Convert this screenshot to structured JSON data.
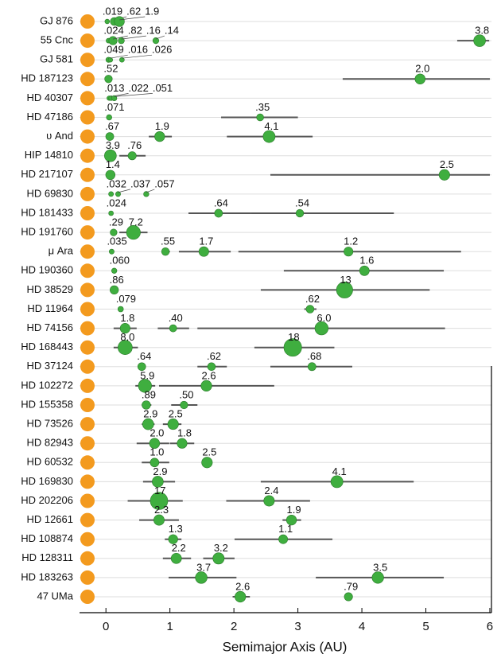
{
  "chart_data": {
    "type": "exoplanet-systems",
    "x_label": "Semimajor Axis (AU)",
    "xlim": [
      -0.45,
      6.05
    ],
    "xticks": [
      0,
      1,
      2,
      3,
      4,
      5,
      6
    ],
    "star_color": "#f39a1e",
    "planet_color": "#3fae3f",
    "range_color": "#555555",
    "systems": [
      {
        "name": "GJ 876",
        "a": [
          0.02,
          0.13,
          0.21
        ],
        "mass": [
          0.019,
          0.62,
          1.9
        ],
        "mass_labels": [
          ".019",
          ".62",
          "1.9"
        ],
        "ranges": [
          null,
          null,
          null
        ]
      },
      {
        "name": "55 Cnc",
        "a": [
          0.04,
          0.11,
          0.24,
          0.78,
          5.84
        ],
        "mass": [
          0.024,
          0.82,
          0.16,
          0.14,
          3.8
        ],
        "mass_labels": [
          ".024",
          ".82",
          ".16",
          ".14",
          "3.8"
        ],
        "ranges": [
          null,
          null,
          null,
          null,
          [
            5.49,
            5.99
          ]
        ]
      },
      {
        "name": "GJ 581",
        "a": [
          0.04,
          0.07,
          0.25
        ],
        "mass": [
          0.049,
          0.016,
          0.026
        ],
        "mass_labels": [
          ".049",
          ".016",
          ".026"
        ],
        "ranges": [
          null,
          null,
          null
        ]
      },
      {
        "name": "HD 187123",
        "a": [
          0.04,
          4.91
        ],
        "mass": [
          0.52,
          2.0
        ],
        "mass_labels": [
          ".52",
          "2.0"
        ],
        "ranges": [
          null,
          [
            3.7,
            6.0
          ]
        ]
      },
      {
        "name": "HD 40307",
        "a": [
          0.05,
          0.08,
          0.13
        ],
        "mass": [
          0.013,
          0.022,
          0.051
        ],
        "mass_labels": [
          ".013",
          ".022",
          ".051"
        ],
        "ranges": [
          null,
          null,
          null
        ]
      },
      {
        "name": "HD 47186",
        "a": [
          0.05,
          2.41
        ],
        "mass": [
          0.071,
          0.35
        ],
        "mass_labels": [
          ".071",
          ".35"
        ],
        "ranges": [
          null,
          [
            1.8,
            3.0
          ]
        ]
      },
      {
        "name": "υ And",
        "a": [
          0.06,
          0.84,
          2.55
        ],
        "mass": [
          0.67,
          1.9,
          4.1
        ],
        "mass_labels": [
          ".67",
          "1.9",
          "4.1"
        ],
        "ranges": [
          null,
          [
            0.67,
            1.03
          ],
          [
            1.89,
            3.23
          ]
        ]
      },
      {
        "name": "HIP 14810",
        "a": [
          0.07,
          0.41
        ],
        "mass": [
          3.9,
          0.76
        ],
        "mass_labels": [
          "3.9",
          ".76"
        ],
        "ranges": [
          null,
          [
            0.21,
            0.62
          ]
        ]
      },
      {
        "name": "HD 217107",
        "a": [
          0.07,
          5.29
        ],
        "mass": [
          1.4,
          2.5
        ],
        "mass_labels": [
          "1.4",
          "2.5"
        ],
        "ranges": [
          null,
          [
            2.57,
            6.0
          ]
        ]
      },
      {
        "name": "HD 69830",
        "a": [
          0.08,
          0.19,
          0.63
        ],
        "mass": [
          0.032,
          0.037,
          0.057
        ],
        "mass_labels": [
          ".032",
          ".037",
          ".057"
        ],
        "ranges": [
          null,
          null,
          null
        ]
      },
      {
        "name": "HD 181433",
        "a": [
          0.08,
          1.76,
          3.03
        ],
        "mass": [
          0.024,
          0.64,
          0.54
        ],
        "mass_labels": [
          ".024",
          ".64",
          ".54"
        ],
        "ranges": [
          null,
          [
            1.29,
            2.26
          ],
          [
            2.26,
            4.5
          ]
        ]
      },
      {
        "name": "HD 191760",
        "a": [
          0.12,
          0.43
        ],
        "mass": [
          0.29,
          7.2
        ],
        "mass_labels": [
          ".29",
          "7.2"
        ],
        "ranges": [
          null,
          [
            0.21,
            0.65
          ]
        ]
      },
      {
        "name": "μ Ara",
        "a": [
          0.09,
          0.93,
          1.53,
          3.79
        ],
        "mass": [
          0.035,
          0.55,
          1.7,
          1.2
        ],
        "mass_labels": [
          ".035",
          ".55",
          "1.7",
          "1.2"
        ],
        "ranges": [
          null,
          [
            0.89,
            1.0
          ],
          [
            1.14,
            1.95
          ],
          [
            2.07,
            5.55
          ]
        ]
      },
      {
        "name": "HD 190360",
        "a": [
          0.13,
          4.04
        ],
        "mass": [
          0.06,
          1.6
        ],
        "mass_labels": [
          ".060",
          "1.6"
        ],
        "ranges": [
          null,
          [
            2.78,
            5.28
          ]
        ]
      },
      {
        "name": "HD 38529",
        "a": [
          0.13,
          3.73
        ],
        "mass": [
          0.86,
          13
        ],
        "mass_labels": [
          ".86",
          "13"
        ],
        "ranges": [
          null,
          [
            2.42,
            5.06
          ]
        ]
      },
      {
        "name": "HD 11964",
        "a": [
          0.23,
          3.19
        ],
        "mass": [
          0.079,
          0.62
        ],
        "mass_labels": [
          ".079",
          ".62"
        ],
        "ranges": [
          null,
          [
            3.1,
            3.29
          ]
        ]
      },
      {
        "name": "HD 74156",
        "a": [
          0.3,
          1.05,
          3.37
        ],
        "mass": [
          1.8,
          0.4,
          6.0
        ],
        "mass_labels": [
          "1.8",
          ".40",
          "6.0"
        ],
        "ranges": [
          [
            0.12,
            0.48
          ],
          [
            0.81,
            1.3
          ],
          [
            1.43,
            5.3
          ]
        ]
      },
      {
        "name": "HD 168443",
        "a": [
          0.3,
          2.92
        ],
        "mass": [
          8.0,
          18
        ],
        "mass_labels": [
          "8.0",
          "18"
        ],
        "ranges": [
          [
            0.12,
            0.5
          ],
          [
            2.32,
            3.57
          ]
        ]
      },
      {
        "name": "HD 37124",
        "a": [
          0.56,
          1.65,
          3.22
        ],
        "mass": [
          0.64,
          0.62,
          0.68
        ],
        "mass_labels": [
          ".64",
          ".62",
          ".68"
        ],
        "ranges": [
          null,
          [
            1.43,
            1.89
          ],
          [
            2.57,
            3.85
          ]
        ]
      },
      {
        "name": "HD 102272",
        "a": [
          0.61,
          1.57
        ],
        "mass": [
          5.9,
          2.6
        ],
        "mass_labels": [
          "5.9",
          "2.6"
        ],
        "ranges": [
          [
            0.46,
            0.77
          ],
          [
            0.83,
            2.63
          ]
        ]
      },
      {
        "name": "HD 155358",
        "a": [
          0.63,
          1.22
        ],
        "mass": [
          0.89,
          0.5
        ],
        "mass_labels": [
          ".89",
          ".50"
        ],
        "ranges": [
          [
            0.56,
            0.71
          ],
          [
            1.02,
            1.43
          ]
        ]
      },
      {
        "name": "HD 73526",
        "a": [
          0.66,
          1.05
        ],
        "mass": [
          2.9,
          2.5
        ],
        "mass_labels": [
          "2.9",
          "2.5"
        ],
        "ranges": [
          [
            0.56,
            0.76
          ],
          [
            0.89,
            1.18
          ]
        ]
      },
      {
        "name": "HD 82943",
        "a": [
          0.76,
          1.19
        ],
        "mass": [
          2.0,
          1.8
        ],
        "mass_labels": [
          "2.0",
          "1.8"
        ],
        "ranges": [
          [
            0.48,
            0.99
          ],
          [
            1.0,
            1.38
          ]
        ]
      },
      {
        "name": "HD 60532",
        "a": [
          0.76,
          1.58
        ],
        "mass": [
          1.0,
          2.5
        ],
        "mass_labels": [
          "1.0",
          "2.5"
        ],
        "ranges": [
          [
            0.56,
            0.99
          ],
          null
        ]
      },
      {
        "name": "HD 169830",
        "a": [
          0.81,
          3.61
        ],
        "mass": [
          2.9,
          4.1
        ],
        "mass_labels": [
          "2.9",
          "4.1"
        ],
        "ranges": [
          [
            0.58,
            1.08
          ],
          [
            2.42,
            4.81
          ]
        ]
      },
      {
        "name": "HD 202206",
        "a": [
          0.83,
          2.55
        ],
        "mass": [
          17,
          2.4
        ],
        "mass_labels": [
          "17",
          "2.4"
        ],
        "ranges": [
          [
            0.34,
            1.2
          ],
          [
            1.88,
            3.19
          ]
        ]
      },
      {
        "name": "HD 12661",
        "a": [
          0.83,
          2.9
        ],
        "mass": [
          2.3,
          1.9
        ],
        "mass_labels": [
          "2.3",
          "1.9"
        ],
        "ranges": [
          [
            0.52,
            1.14
          ],
          [
            2.76,
            3.05
          ]
        ]
      },
      {
        "name": "HD 108874",
        "a": [
          1.05,
          2.77
        ],
        "mass": [
          1.3,
          1.1
        ],
        "mass_labels": [
          "1.3",
          "1.1"
        ],
        "ranges": [
          [
            0.92,
            1.18
          ],
          [
            2.01,
            3.54
          ]
        ]
      },
      {
        "name": "HD 128311",
        "a": [
          1.1,
          1.76
        ],
        "mass": [
          2.2,
          3.2
        ],
        "mass_labels": [
          "2.2",
          "3.2"
        ],
        "ranges": [
          [
            0.89,
            1.33
          ],
          [
            1.52,
            2.01
          ]
        ]
      },
      {
        "name": "HD 183263",
        "a": [
          1.49,
          4.25
        ],
        "mass": [
          3.7,
          3.5
        ],
        "mass_labels": [
          "3.7",
          "3.5"
        ],
        "ranges": [
          [
            0.98,
            2.04
          ],
          [
            3.28,
            5.28
          ]
        ]
      },
      {
        "name": "47 UMa",
        "a": [
          2.1,
          3.79
        ],
        "mass": [
          2.6,
          0.79
        ],
        "mass_labels": [
          "2.6",
          ".79"
        ],
        "ranges": [
          [
            1.98,
            2.25
          ],
          null
        ]
      }
    ]
  }
}
